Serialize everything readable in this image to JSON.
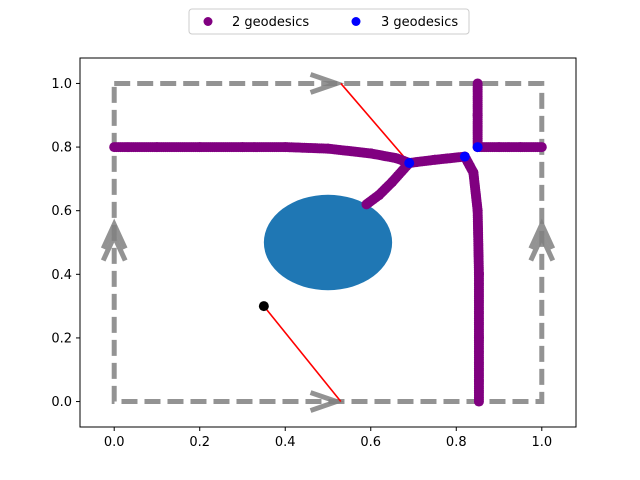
{
  "chart_data": {
    "type": "scatter",
    "xlim": [
      -0.08,
      1.08
    ],
    "ylim": [
      -0.08,
      1.08
    ],
    "x_ticks": [
      "0.0",
      "0.2",
      "0.4",
      "0.6",
      "0.8",
      "1.0"
    ],
    "y_ticks": [
      "0.0",
      "0.2",
      "0.4",
      "0.6",
      "0.8",
      "1.0"
    ],
    "grid": false,
    "legend_position": "top-center",
    "legend": [
      {
        "label": "2 geodesics",
        "color": "#800080"
      },
      {
        "label": "3 geodesics",
        "color": "#0000ff"
      }
    ],
    "domain_box": {
      "x0": 0.0,
      "y0": 0.0,
      "x1": 1.0,
      "y1": 1.0,
      "color": "#808080",
      "style": "dashed"
    },
    "boundary_arrows": [
      {
        "x": 0.52,
        "y": 1.0,
        "direction": "right"
      },
      {
        "x": 0.52,
        "y": 0.0,
        "direction": "right"
      },
      {
        "x": 0.0,
        "y": 0.5,
        "direction": "up"
      },
      {
        "x": 1.0,
        "y": 0.5,
        "direction": "up"
      }
    ],
    "obstacle": {
      "type": "ellipse",
      "cx": 0.5,
      "cy": 0.5,
      "rx": 0.15,
      "ry": 0.15,
      "color": "#1f77b4"
    },
    "source_point": {
      "x": 0.35,
      "y": 0.3,
      "color": "#000000"
    },
    "geodesic_lines": [
      {
        "points": [
          [
            0.35,
            0.3
          ],
          [
            0.53,
            0.0
          ]
        ],
        "color": "#ff0000"
      },
      {
        "points": [
          [
            0.53,
            1.0
          ],
          [
            0.69,
            0.75
          ]
        ],
        "color": "#ff0000"
      }
    ],
    "series": [
      {
        "name": "2 geodesics",
        "color": "#800080",
        "curves": [
          [
            [
              0.0,
              0.8
            ],
            [
              0.1,
              0.8
            ],
            [
              0.2,
              0.8
            ],
            [
              0.3,
              0.8
            ],
            [
              0.4,
              0.8
            ],
            [
              0.5,
              0.795
            ],
            [
              0.6,
              0.78
            ],
            [
              0.66,
              0.765
            ],
            [
              0.69,
              0.75
            ]
          ],
          [
            [
              0.59,
              0.62
            ],
            [
              0.62,
              0.65
            ],
            [
              0.65,
              0.69
            ],
            [
              0.69,
              0.75
            ]
          ],
          [
            [
              0.69,
              0.75
            ],
            [
              0.75,
              0.76
            ],
            [
              0.82,
              0.77
            ]
          ],
          [
            [
              0.82,
              0.77
            ],
            [
              0.84,
              0.72
            ],
            [
              0.85,
              0.6
            ],
            [
              0.853,
              0.4
            ],
            [
              0.853,
              0.2
            ],
            [
              0.853,
              0.0
            ]
          ],
          [
            [
              0.85,
              0.8
            ],
            [
              0.85,
              0.9
            ],
            [
              0.85,
              1.0
            ]
          ],
          [
            [
              0.85,
              0.8
            ],
            [
              0.9,
              0.8
            ],
            [
              0.95,
              0.8
            ],
            [
              1.0,
              0.8
            ]
          ]
        ]
      },
      {
        "name": "3 geodesics",
        "color": "#0000ff",
        "points": [
          [
            0.69,
            0.75
          ],
          [
            0.82,
            0.77
          ],
          [
            0.85,
            0.8
          ]
        ]
      }
    ]
  }
}
